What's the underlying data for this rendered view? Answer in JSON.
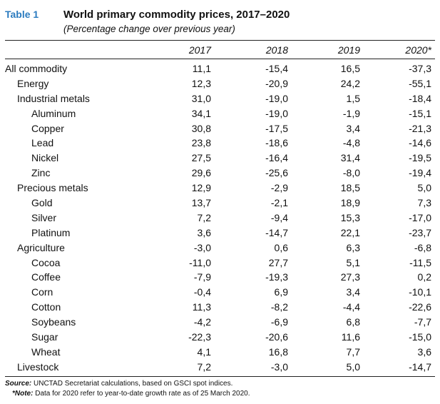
{
  "table": {
    "label": "Table 1",
    "title": "World primary commodity prices, 2017–2020",
    "subtitle": "(Percentage change over previous year)",
    "columns": [
      "2017",
      "2018",
      "2019",
      "2020*"
    ],
    "rows": [
      {
        "name": "All commodity",
        "level": 0,
        "values": [
          "11,1",
          "-15,4",
          "16,5",
          "-37,3"
        ]
      },
      {
        "name": "Energy",
        "level": 1,
        "values": [
          "12,3",
          "-20,9",
          "24,2",
          "-55,1"
        ]
      },
      {
        "name": "Industrial metals",
        "level": 1,
        "values": [
          "31,0",
          "-19,0",
          "1,5",
          "-18,4"
        ]
      },
      {
        "name": "Aluminum",
        "level": 2,
        "values": [
          "34,1",
          "-19,0",
          "-1,9",
          "-15,1"
        ]
      },
      {
        "name": "Copper",
        "level": 2,
        "values": [
          "30,8",
          "-17,5",
          "3,4",
          "-21,3"
        ]
      },
      {
        "name": "Lead",
        "level": 2,
        "values": [
          "23,8",
          "-18,6",
          "-4,8",
          "-14,6"
        ]
      },
      {
        "name": "Nickel",
        "level": 2,
        "values": [
          "27,5",
          "-16,4",
          "31,4",
          "-19,5"
        ]
      },
      {
        "name": "Zinc",
        "level": 2,
        "values": [
          "29,6",
          "-25,6",
          "-8,0",
          "-19,4"
        ]
      },
      {
        "name": "Precious metals",
        "level": 1,
        "values": [
          "12,9",
          "-2,9",
          "18,5",
          "5,0"
        ]
      },
      {
        "name": "Gold",
        "level": 2,
        "values": [
          "13,7",
          "-2,1",
          "18,9",
          "7,3"
        ]
      },
      {
        "name": "Silver",
        "level": 2,
        "values": [
          "7,2",
          "-9,4",
          "15,3",
          "-17,0"
        ]
      },
      {
        "name": "Platinum",
        "level": 2,
        "values": [
          "3,6",
          "-14,7",
          "22,1",
          "-23,7"
        ]
      },
      {
        "name": "Agriculture",
        "level": 1,
        "values": [
          "-3,0",
          "0,6",
          "6,3",
          "-6,8"
        ]
      },
      {
        "name": "Cocoa",
        "level": 2,
        "values": [
          "-11,0",
          "27,7",
          "5,1",
          "-11,5"
        ]
      },
      {
        "name": "Coffee",
        "level": 2,
        "values": [
          "-7,9",
          "-19,3",
          "27,3",
          "0,2"
        ]
      },
      {
        "name": "Corn",
        "level": 2,
        "values": [
          "-0,4",
          "6,9",
          "3,4",
          "-10,1"
        ]
      },
      {
        "name": "Cotton",
        "level": 2,
        "values": [
          "11,3",
          "-8,2",
          "-4,4",
          "-22,6"
        ]
      },
      {
        "name": "Soybeans",
        "level": 2,
        "values": [
          "-4,2",
          "-6,9",
          "6,8",
          "-7,7"
        ]
      },
      {
        "name": "Sugar",
        "level": 2,
        "values": [
          "-22,3",
          "-20,6",
          "11,6",
          "-15,0"
        ]
      },
      {
        "name": "Wheat",
        "level": 2,
        "values": [
          "4,1",
          "16,8",
          "7,7",
          "3,6"
        ]
      },
      {
        "name": "Livestock",
        "level": 1,
        "values": [
          "7,2",
          "-3,0",
          "5,0",
          "-14,7"
        ]
      }
    ]
  },
  "footer": {
    "source_label": "Source:",
    "source_text": " UNCTAD Secretariat calculations, based on GSCI spot indices.",
    "note_label": "*Note:",
    "note_text": " Data for 2020 refer to year-to-date growth rate as of 25 March 2020."
  },
  "colors": {
    "label_blue": "#2b7bbf",
    "rule": "#222222"
  }
}
